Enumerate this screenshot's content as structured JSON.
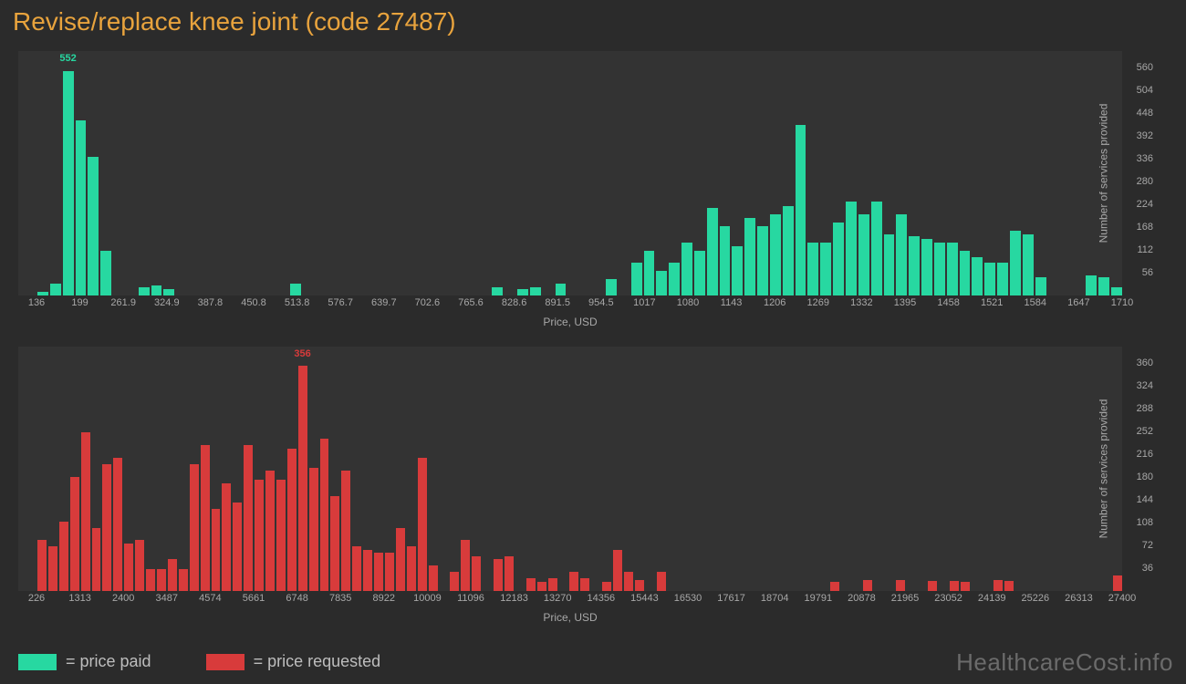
{
  "title": "Revise/replace knee joint (code 27487)",
  "colors": {
    "background": "#2b2b2b",
    "panel": "#333333",
    "title": "#e8a33d",
    "axis_text": "#a8a8a8",
    "green": "#27d8a1",
    "red": "#d83b3b",
    "watermark": "#6b6b6b"
  },
  "watermark": "HealthcareCost.info",
  "legend": {
    "items": [
      {
        "color": "#27d8a1",
        "label": "= price paid"
      },
      {
        "color": "#d83b3b",
        "label": "= price requested"
      }
    ]
  },
  "chart_paid": {
    "type": "histogram",
    "bar_color": "#27d8a1",
    "xlabel": "Price, USD",
    "ylabel": "Number of services provided",
    "peak": {
      "value": 552,
      "bin_index": 2
    },
    "ymax": 560,
    "yticks": [
      56,
      112,
      168,
      224,
      280,
      336,
      392,
      448,
      504,
      560
    ],
    "xticks": [
      "136",
      "199",
      "261.9",
      "324.9",
      "387.8",
      "450.8",
      "513.8",
      "576.7",
      "639.7",
      "702.6",
      "765.6",
      "828.6",
      "891.5",
      "954.5",
      "1017",
      "1080",
      "1143",
      "1206",
      "1269",
      "1332",
      "1395",
      "1458",
      "1521",
      "1584",
      "1647",
      "1710"
    ],
    "values": [
      10,
      30,
      552,
      430,
      340,
      110,
      0,
      0,
      20,
      25,
      15,
      0,
      0,
      0,
      0,
      0,
      0,
      0,
      0,
      0,
      30,
      0,
      0,
      0,
      0,
      0,
      0,
      0,
      0,
      0,
      0,
      0,
      0,
      0,
      0,
      0,
      20,
      0,
      15,
      20,
      0,
      30,
      0,
      0,
      0,
      40,
      0,
      80,
      110,
      60,
      80,
      130,
      110,
      215,
      170,
      120,
      190,
      170,
      200,
      220,
      420,
      130,
      130,
      180,
      230,
      200,
      230,
      150,
      200,
      145,
      140,
      130,
      130,
      110,
      95,
      80,
      80,
      160,
      150,
      45,
      0,
      0,
      0,
      50,
      45,
      20
    ]
  },
  "chart_requested": {
    "type": "histogram",
    "bar_color": "#d83b3b",
    "xlabel": "Price, USD",
    "ylabel": "Number of services provided",
    "peak": {
      "value": 356,
      "bin_index": 24
    },
    "ymax": 360,
    "yticks": [
      36,
      72,
      108,
      144,
      180,
      216,
      252,
      288,
      324,
      360
    ],
    "xticks": [
      "226",
      "1313",
      "2400",
      "3487",
      "4574",
      "5661",
      "6748",
      "7835",
      "8922",
      "10009",
      "11096",
      "12183",
      "13270",
      "14356",
      "15443",
      "16530",
      "17617",
      "18704",
      "19791",
      "20878",
      "21965",
      "23052",
      "24139",
      "25226",
      "26313",
      "27400"
    ],
    "values": [
      80,
      70,
      110,
      180,
      250,
      100,
      200,
      210,
      75,
      80,
      35,
      35,
      50,
      35,
      200,
      230,
      130,
      170,
      140,
      230,
      175,
      190,
      175,
      225,
      356,
      195,
      240,
      150,
      190,
      70,
      65,
      60,
      60,
      100,
      70,
      210,
      40,
      0,
      30,
      80,
      55,
      0,
      50,
      55,
      0,
      20,
      15,
      20,
      0,
      30,
      20,
      0,
      15,
      65,
      30,
      18,
      0,
      30,
      0,
      0,
      0,
      0,
      0,
      0,
      0,
      0,
      0,
      0,
      0,
      0,
      0,
      0,
      0,
      15,
      0,
      0,
      18,
      0,
      0,
      18,
      0,
      0,
      16,
      0,
      16,
      15,
      0,
      0,
      18,
      16,
      0,
      0,
      0,
      0,
      0,
      0,
      0,
      0,
      0,
      25
    ]
  }
}
